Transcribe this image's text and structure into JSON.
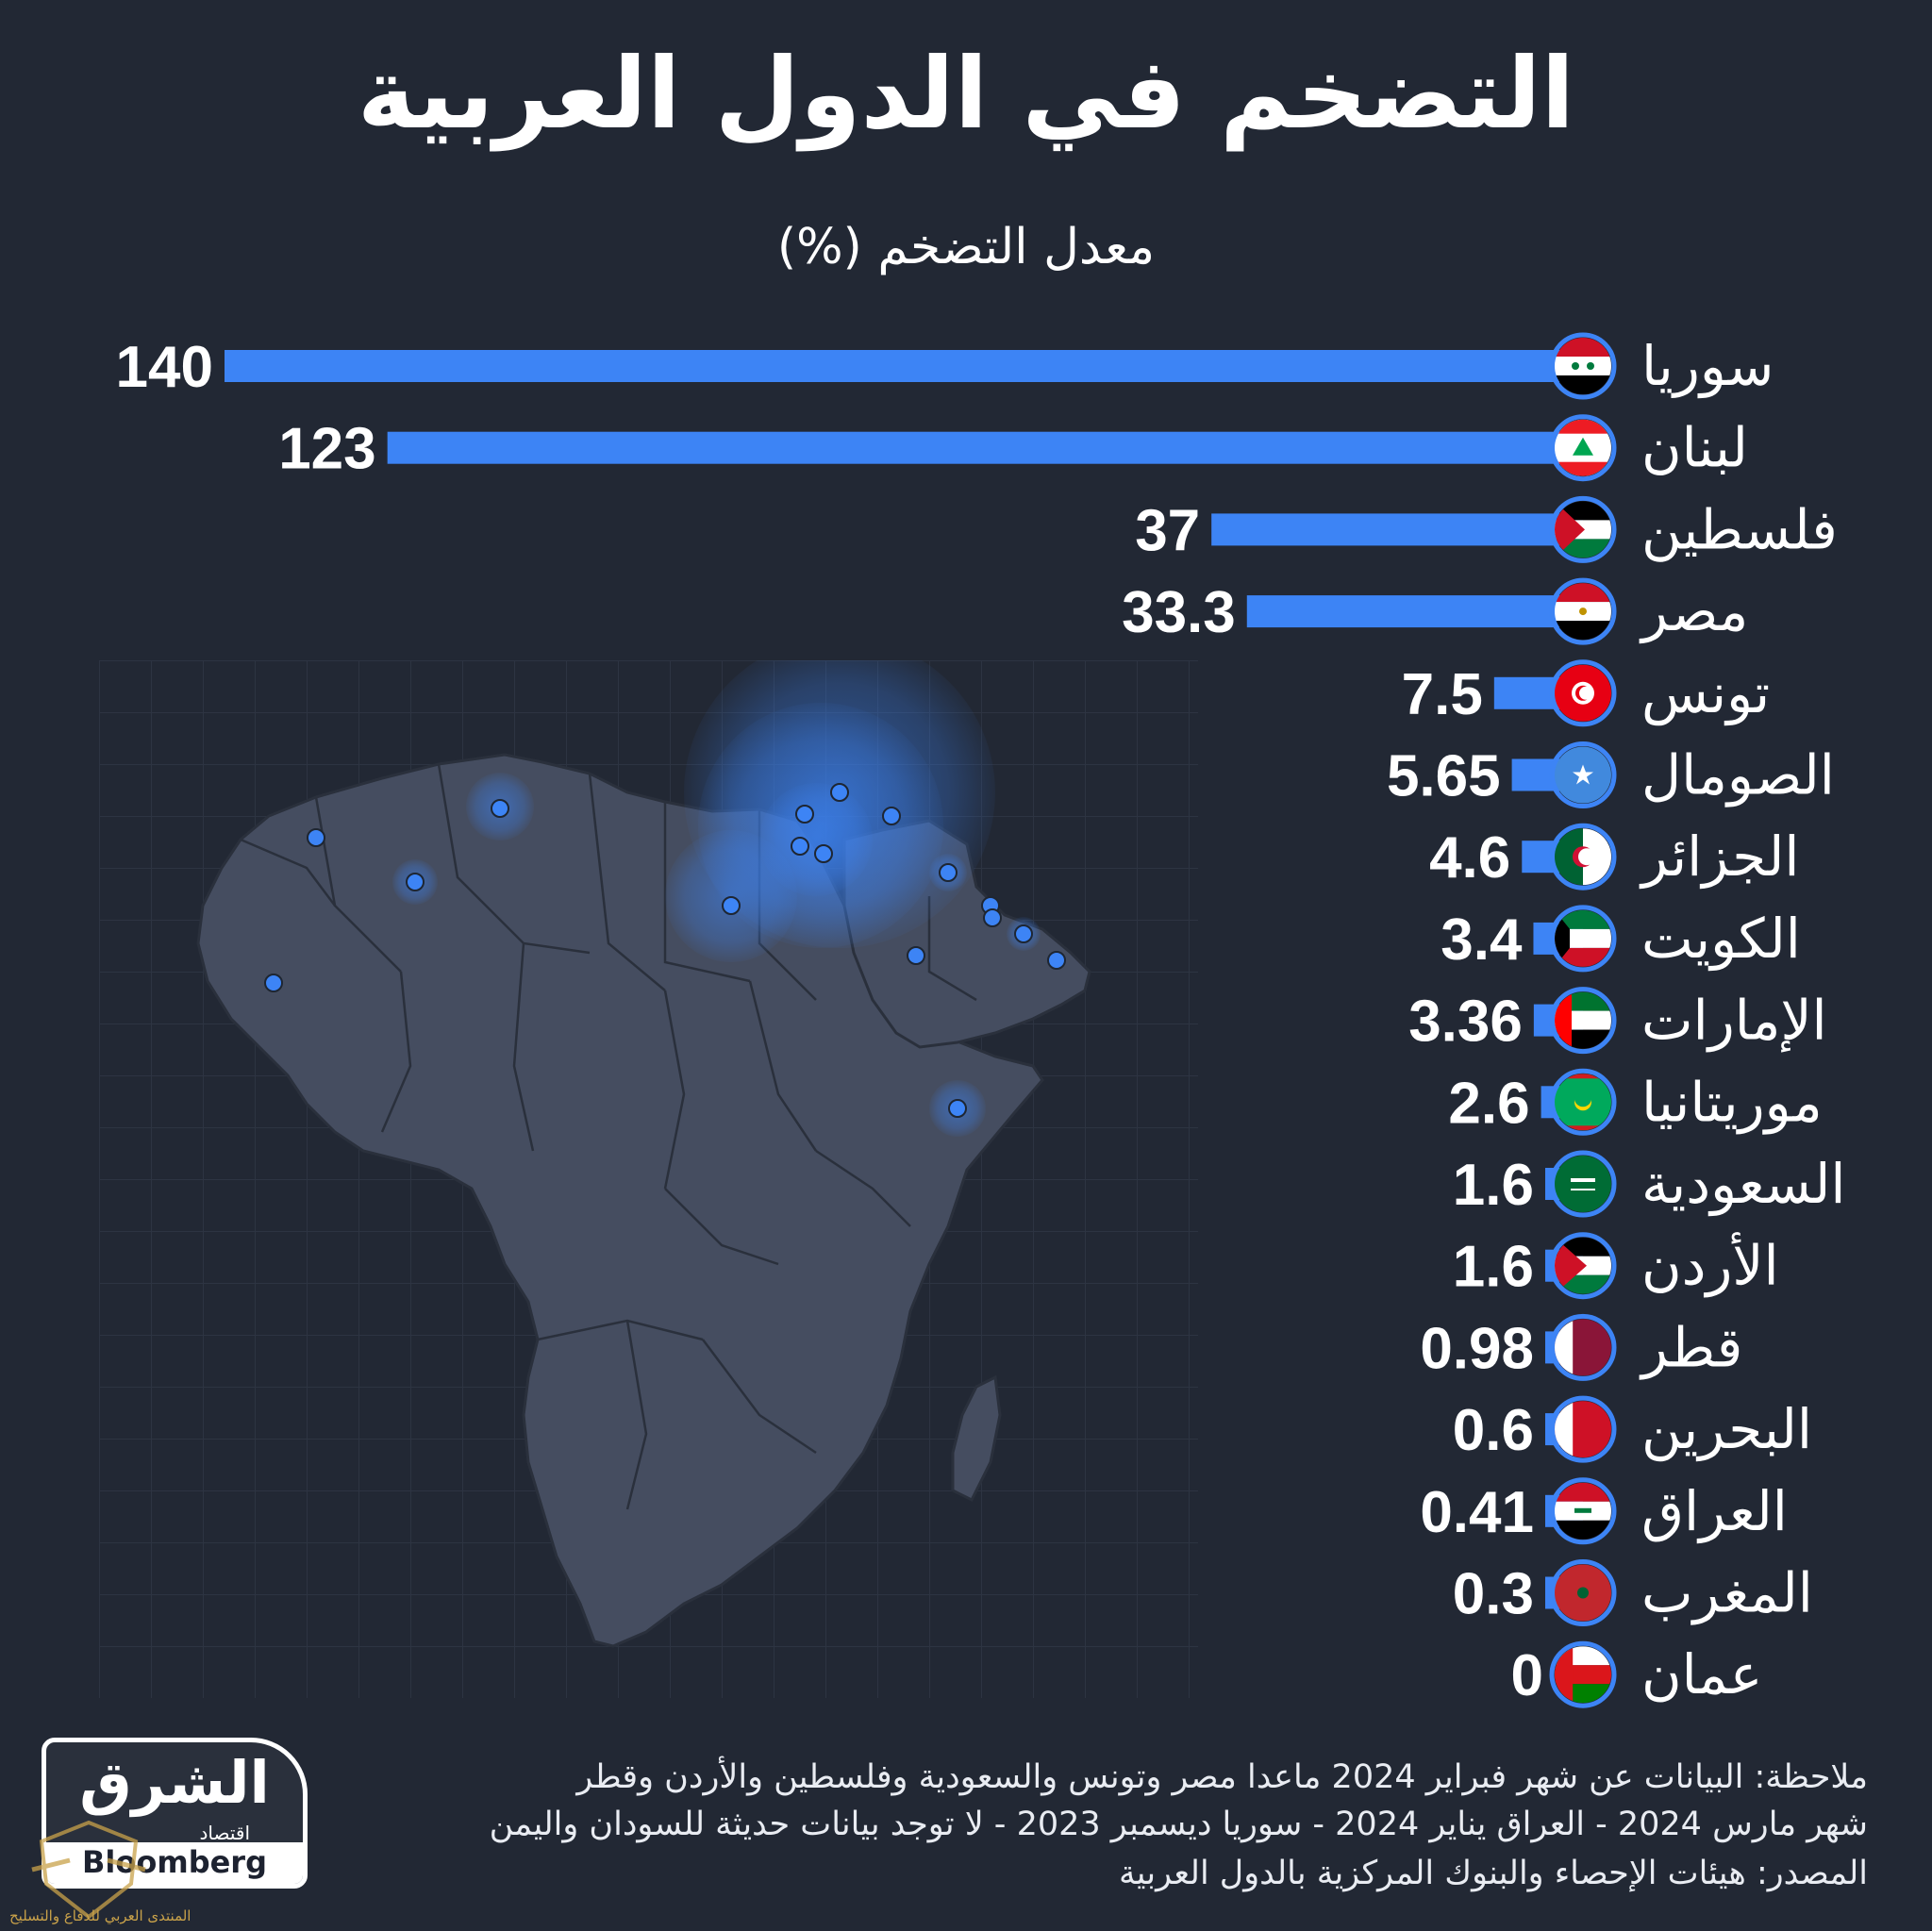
{
  "title": "التضخم في الدول العربية",
  "subtitle": "معدل التضخم (%)",
  "colors": {
    "background": "#222834",
    "bar": "#3d84f5",
    "text": "#ffffff",
    "map_land": "#454d60",
    "map_border": "#2a303c",
    "marker": "#3d84f5"
  },
  "chart_data": {
    "type": "bar",
    "orientation": "horizontal",
    "title": "التضخم في الدول العربية",
    "ylabel": "معدل التضخم (%)",
    "xlim": [
      0,
      140
    ],
    "grid": false,
    "legend": "none",
    "categories": [
      "سوريا",
      "لبنان",
      "فلسطين",
      "مصر",
      "تونس",
      "الصومال",
      "الجزائر",
      "الكويت",
      "الإمارات",
      "موريتانيا",
      "السعودية",
      "الأردن",
      "قطر",
      "البحرين",
      "العراق",
      "المغرب",
      "عمان"
    ],
    "values": [
      140,
      123,
      37,
      33.3,
      7.5,
      5.65,
      4.6,
      3.4,
      3.36,
      2.6,
      1.6,
      1.6,
      0.98,
      0.6,
      0.41,
      0.3,
      0
    ],
    "labels": [
      "140",
      "123",
      "37",
      "33.3",
      "7.5",
      "5.65",
      "4.6",
      "3.4",
      "3.36",
      "2.6",
      "1.6",
      "1.6",
      "0.98",
      "0.6",
      "0.41",
      "0.3",
      "0"
    ],
    "flags": [
      "syria-flag-icon",
      "lebanon-flag-icon",
      "palestine-flag-icon",
      "egypt-flag-icon",
      "tunisia-flag-icon",
      "somalia-flag-icon",
      "algeria-flag-icon",
      "kuwait-flag-icon",
      "uae-flag-icon",
      "mauritania-flag-icon",
      "saudi-flag-icon",
      "jordan-flag-icon",
      "qatar-flag-icon",
      "bahrain-flag-icon",
      "iraq-flag-icon",
      "morocco-flag-icon",
      "oman-flag-icon"
    ]
  },
  "map": {
    "icon": "africa-middle-east-map-icon",
    "marker_icon": "location-marker-icon"
  },
  "note": {
    "line1": "ملاحظة: البيانات عن شهر فبراير 2024 ماعدا مصر وتونس والسعودية وفلسطين والأردن وقطر",
    "line2": "شهر مارس 2024 - العراق يناير 2024 - سوريا ديسمبر 2023 - لا توجد بيانات حديثة للسودان واليمن",
    "line3": "المصدر: هيئات الإحصاء والبنوك المركزية بالدول العربية"
  },
  "logo": {
    "main": "الشرق",
    "sub": "اقتصاد",
    "with": "مع",
    "partner": "Bloomberg"
  },
  "watermark": {
    "text": "المنتدى العربي للدفاع والتسليح"
  }
}
